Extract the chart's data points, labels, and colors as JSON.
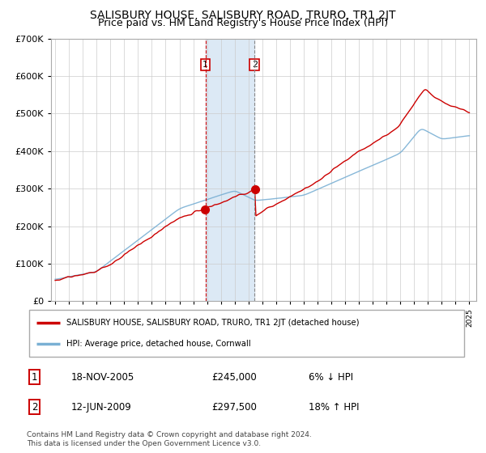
{
  "title": "SALISBURY HOUSE, SALISBURY ROAD, TRURO, TR1 2JT",
  "subtitle": "Price paid vs. HM Land Registry's House Price Index (HPI)",
  "legend_label_red": "SALISBURY HOUSE, SALISBURY ROAD, TRURO, TR1 2JT (detached house)",
  "legend_label_blue": "HPI: Average price, detached house, Cornwall",
  "transaction1_label": "1",
  "transaction1_date": "18-NOV-2005",
  "transaction1_price": "£245,000",
  "transaction1_hpi": "6% ↓ HPI",
  "transaction2_label": "2",
  "transaction2_date": "12-JUN-2009",
  "transaction2_price": "£297,500",
  "transaction2_hpi": "18% ↑ HPI",
  "footer": "Contains HM Land Registry data © Crown copyright and database right 2024.\nThis data is licensed under the Open Government Licence v3.0.",
  "ylim": [
    0,
    700000
  ],
  "yticks": [
    0,
    100000,
    200000,
    300000,
    400000,
    500000,
    600000,
    700000
  ],
  "background_color": "#ffffff",
  "grid_color": "#cccccc",
  "highlight_color": "#dce9f5",
  "transaction1_x": 2005.88,
  "transaction2_x": 2009.44,
  "red_color": "#cc0000",
  "blue_color": "#7ab0d4",
  "title_fontsize": 10,
  "subtitle_fontsize": 9
}
